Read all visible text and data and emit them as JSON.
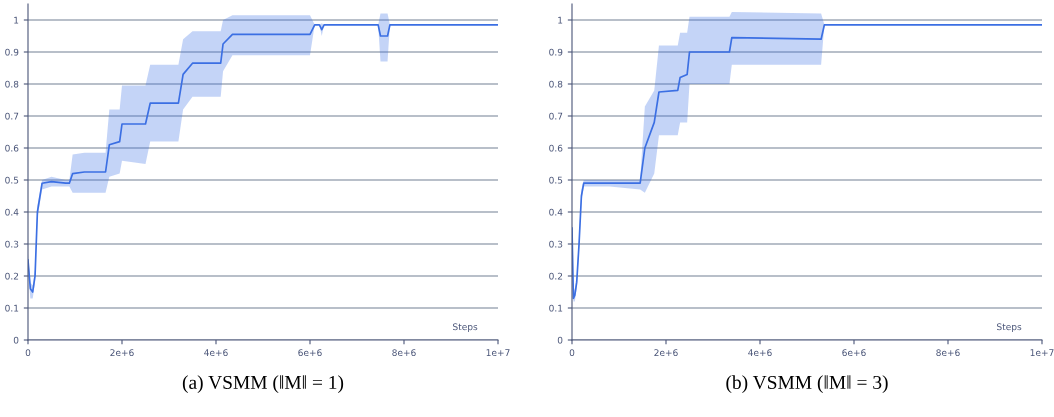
{
  "chart_data": [
    {
      "type": "line",
      "title": "(a) VSMM (‖M‖ = 1)",
      "xlabel": "Steps",
      "xlim": [
        0,
        10000000
      ],
      "ylim": [
        0,
        1.05
      ],
      "xticks": [
        0,
        {
          "value": 2000000,
          "label": "2e+6"
        },
        {
          "value": 4000000,
          "label": "4e+6"
        },
        {
          "value": 6000000,
          "label": "6e+6"
        },
        {
          "value": 8000000,
          "label": "8e+6"
        },
        {
          "value": 10000000,
          "label": "1e+7"
        }
      ],
      "yticks": [
        0,
        0.1,
        0.2,
        0.3,
        0.4,
        0.5,
        0.6,
        0.7,
        0.8,
        0.9,
        1
      ],
      "grid": "y",
      "marker": "none",
      "line_style": "solid",
      "x": [
        0,
        50000,
        100000,
        150000,
        200000,
        300000,
        500000,
        800000,
        880000,
        950000,
        1200000,
        1650000,
        1730000,
        1950000,
        2000000,
        2500000,
        2600000,
        3200000,
        3300000,
        3500000,
        4100000,
        4150000,
        4350000,
        6000000,
        6100000,
        6200000,
        6250000,
        6300000,
        7450000,
        7500000,
        7650000,
        7700000,
        9500000,
        10000000
      ],
      "series": [
        {
          "color": "#3b6fe3",
          "values": [
            0.25,
            0.16,
            0.15,
            0.2,
            0.4,
            0.49,
            0.495,
            0.49,
            0.49,
            0.52,
            0.525,
            0.525,
            0.61,
            0.62,
            0.675,
            0.675,
            0.74,
            0.74,
            0.83,
            0.865,
            0.865,
            0.925,
            0.955,
            0.955,
            0.985,
            0.985,
            0.97,
            0.985,
            0.985,
            0.95,
            0.95,
            0.985,
            0.985,
            0.985
          ],
          "lower": [
            0.22,
            0.13,
            0.13,
            0.18,
            0.38,
            0.47,
            0.48,
            0.48,
            0.48,
            0.46,
            0.46,
            0.46,
            0.51,
            0.52,
            0.56,
            0.55,
            0.62,
            0.62,
            0.72,
            0.76,
            0.76,
            0.84,
            0.89,
            0.89,
            0.985,
            0.985,
            0.95,
            0.985,
            0.985,
            0.87,
            0.87,
            0.985,
            0.985,
            0.985
          ],
          "upper": [
            0.27,
            0.18,
            0.17,
            0.22,
            0.42,
            0.5,
            0.51,
            0.5,
            0.5,
            0.58,
            0.585,
            0.585,
            0.72,
            0.72,
            0.795,
            0.795,
            0.86,
            0.86,
            0.94,
            0.965,
            0.965,
            1.0,
            1.015,
            1.015,
            0.985,
            0.985,
            0.99,
            0.985,
            0.985,
            1.02,
            1.02,
            0.985,
            0.985,
            0.985
          ]
        }
      ]
    },
    {
      "type": "line",
      "title": "(b) VSMM (‖M‖ = 3)",
      "xlabel": "Steps",
      "xlim": [
        0,
        10000000
      ],
      "ylim": [
        0,
        1.05
      ],
      "xticks": [
        0,
        {
          "value": 2000000,
          "label": "2e+6"
        },
        {
          "value": 4000000,
          "label": "4e+6"
        },
        {
          "value": 6000000,
          "label": "6e+6"
        },
        {
          "value": 8000000,
          "label": "8e+6"
        },
        {
          "value": 10000000,
          "label": "1e+7"
        }
      ],
      "yticks": [
        0,
        0.1,
        0.2,
        0.3,
        0.4,
        0.5,
        0.6,
        0.7,
        0.8,
        0.9,
        1
      ],
      "grid": "y",
      "marker": "none",
      "line_style": "solid",
      "x": [
        0,
        30000,
        60000,
        100000,
        150000,
        200000,
        250000,
        800000,
        1450000,
        1550000,
        1750000,
        1850000,
        2250000,
        2300000,
        2450000,
        2500000,
        3350000,
        3400000,
        5300000,
        5370000,
        8000000,
        10000000
      ],
      "series": [
        {
          "color": "#3b6fe3",
          "values": [
            0.35,
            0.13,
            0.14,
            0.18,
            0.3,
            0.45,
            0.49,
            0.49,
            0.49,
            0.6,
            0.68,
            0.775,
            0.78,
            0.82,
            0.83,
            0.9,
            0.9,
            0.945,
            0.94,
            0.985,
            0.985,
            0.985
          ],
          "lower": [
            0.33,
            0.12,
            0.12,
            0.16,
            0.28,
            0.43,
            0.48,
            0.48,
            0.47,
            0.46,
            0.52,
            0.64,
            0.64,
            0.68,
            0.68,
            0.8,
            0.8,
            0.86,
            0.86,
            0.985,
            0.985,
            0.985
          ],
          "upper": [
            0.37,
            0.15,
            0.16,
            0.2,
            0.32,
            0.47,
            0.5,
            0.5,
            0.5,
            0.73,
            0.78,
            0.92,
            0.92,
            0.96,
            0.96,
            1.01,
            1.01,
            1.025,
            1.02,
            0.985,
            0.985,
            0.985
          ]
        }
      ]
    }
  ]
}
